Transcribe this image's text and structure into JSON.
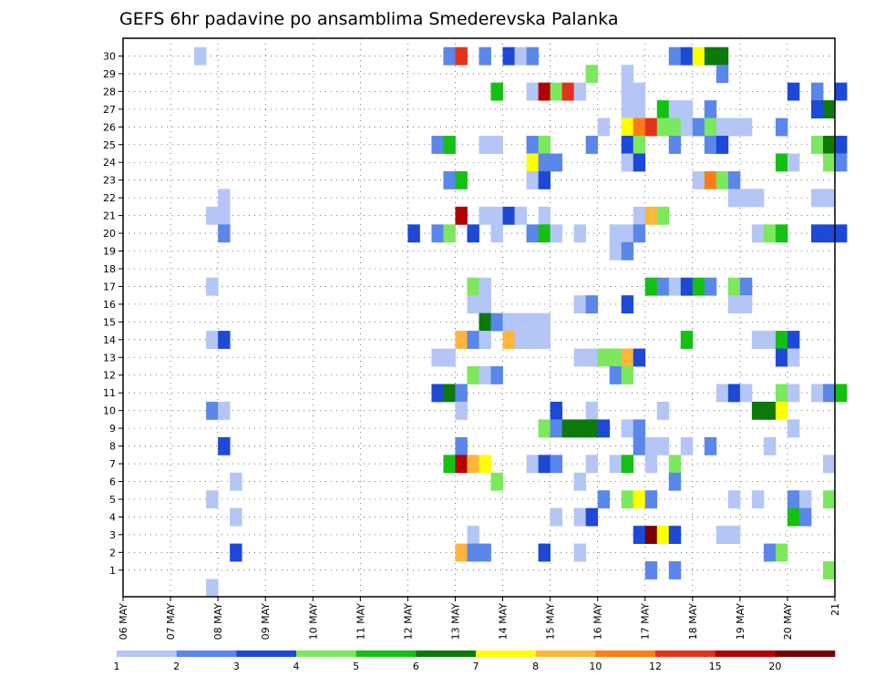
{
  "chart_data": {
    "type": "heatmap",
    "title": "GEFS 6hr padavine po ansamblima Smederevska Palanka",
    "xlabel": "",
    "ylabel": "",
    "x_tick_labels": [
      "06 MAY",
      "07 MAY",
      "08 MAY",
      "09 MAY",
      "10 MAY",
      "11 MAY",
      "12 MAY",
      "13 MAY",
      "14 MAY",
      "15 MAY",
      "16 MAY",
      "17 MAY",
      "18 MAY",
      "19 MAY",
      "20 MAY",
      "21"
    ],
    "y_tick_labels": [
      "1",
      "2",
      "3",
      "4",
      "5",
      "6",
      "7",
      "8",
      "9",
      "10",
      "11",
      "12",
      "13",
      "14",
      "15",
      "16",
      "17",
      "18",
      "19",
      "20",
      "21",
      "22",
      "23",
      "24",
      "25",
      "26",
      "27",
      "28",
      "29",
      "30"
    ],
    "grid": true,
    "n_steps": 60,
    "colorbar": {
      "labels": [
        "1",
        "2",
        "3",
        "4",
        "5",
        "6",
        "7",
        "8",
        "10",
        "12",
        "15",
        "20"
      ],
      "colors": [
        "#b3c6f5",
        "#5b86ea",
        "#1d49d6",
        "#7be85d",
        "#14c014",
        "#0b7a0b",
        "#ffff00",
        "#ffb43a",
        "#ff7d14",
        "#e4321a",
        "#b30000",
        "#780000"
      ]
    },
    "cells": [
      [
        6,
        30,
        0
      ],
      [
        27,
        30,
        1
      ],
      [
        28,
        30,
        9
      ],
      [
        30,
        30,
        1
      ],
      [
        32,
        30,
        2
      ],
      [
        33,
        30,
        0
      ],
      [
        34,
        30,
        1
      ],
      [
        46,
        30,
        1
      ],
      [
        47,
        30,
        2
      ],
      [
        48,
        30,
        6
      ],
      [
        49,
        30,
        5
      ],
      [
        50,
        30,
        5
      ],
      [
        39,
        29,
        3
      ],
      [
        42,
        29,
        0
      ],
      [
        50,
        29,
        1
      ],
      [
        31,
        28,
        4
      ],
      [
        34,
        28,
        0
      ],
      [
        35,
        28,
        10
      ],
      [
        36,
        28,
        3
      ],
      [
        37,
        28,
        9
      ],
      [
        38,
        28,
        0
      ],
      [
        42,
        28,
        0
      ],
      [
        43,
        28,
        0
      ],
      [
        56,
        28,
        2
      ],
      [
        58,
        28,
        1
      ],
      [
        60,
        28,
        2
      ],
      [
        42,
        27,
        0
      ],
      [
        43,
        27,
        0
      ],
      [
        45,
        27,
        4
      ],
      [
        46,
        27,
        0
      ],
      [
        47,
        27,
        0
      ],
      [
        49,
        27,
        1
      ],
      [
        58,
        27,
        2
      ],
      [
        59,
        27,
        5
      ],
      [
        40,
        26,
        0
      ],
      [
        42,
        26,
        6
      ],
      [
        43,
        26,
        8
      ],
      [
        44,
        26,
        9
      ],
      [
        45,
        26,
        3
      ],
      [
        46,
        26,
        3
      ],
      [
        47,
        26,
        0
      ],
      [
        48,
        26,
        1
      ],
      [
        49,
        26,
        3
      ],
      [
        50,
        26,
        0
      ],
      [
        51,
        26,
        0
      ],
      [
        52,
        26,
        0
      ],
      [
        55,
        26,
        1
      ],
      [
        26,
        25,
        1
      ],
      [
        27,
        25,
        4
      ],
      [
        30,
        25,
        0
      ],
      [
        31,
        25,
        0
      ],
      [
        34,
        25,
        1
      ],
      [
        35,
        25,
        3
      ],
      [
        39,
        25,
        1
      ],
      [
        42,
        25,
        2
      ],
      [
        43,
        25,
        3
      ],
      [
        46,
        25,
        1
      ],
      [
        49,
        25,
        1
      ],
      [
        50,
        25,
        2
      ],
      [
        58,
        25,
        3
      ],
      [
        59,
        25,
        5
      ],
      [
        60,
        25,
        2
      ],
      [
        34,
        24,
        6
      ],
      [
        35,
        24,
        1
      ],
      [
        36,
        24,
        1
      ],
      [
        42,
        24,
        0
      ],
      [
        43,
        24,
        2
      ],
      [
        55,
        24,
        4
      ],
      [
        56,
        24,
        0
      ],
      [
        59,
        24,
        3
      ],
      [
        60,
        24,
        1
      ],
      [
        27,
        23,
        1
      ],
      [
        28,
        23,
        4
      ],
      [
        34,
        23,
        0
      ],
      [
        35,
        23,
        2
      ],
      [
        48,
        23,
        0
      ],
      [
        49,
        23,
        8
      ],
      [
        50,
        23,
        3
      ],
      [
        51,
        23,
        1
      ],
      [
        8,
        22,
        0
      ],
      [
        51,
        22,
        0
      ],
      [
        52,
        22,
        0
      ],
      [
        53,
        22,
        0
      ],
      [
        58,
        22,
        0
      ],
      [
        59,
        22,
        0
      ],
      [
        7,
        21,
        0
      ],
      [
        8,
        21,
        0
      ],
      [
        28,
        21,
        10
      ],
      [
        30,
        21,
        0
      ],
      [
        31,
        21,
        0
      ],
      [
        32,
        21,
        2
      ],
      [
        33,
        21,
        0
      ],
      [
        35,
        21,
        0
      ],
      [
        43,
        21,
        0
      ],
      [
        44,
        21,
        7
      ],
      [
        45,
        21,
        3
      ],
      [
        8,
        20,
        1
      ],
      [
        24,
        20,
        2
      ],
      [
        26,
        20,
        1
      ],
      [
        27,
        20,
        3
      ],
      [
        29,
        20,
        2
      ],
      [
        31,
        20,
        0
      ],
      [
        34,
        20,
        1
      ],
      [
        35,
        20,
        4
      ],
      [
        36,
        20,
        0
      ],
      [
        38,
        20,
        0
      ],
      [
        41,
        20,
        0
      ],
      [
        42,
        20,
        0
      ],
      [
        43,
        20,
        1
      ],
      [
        53,
        20,
        0
      ],
      [
        54,
        20,
        3
      ],
      [
        55,
        20,
        4
      ],
      [
        58,
        20,
        2
      ],
      [
        59,
        20,
        2
      ],
      [
        60,
        20,
        2
      ],
      [
        41,
        19,
        0
      ],
      [
        42,
        19,
        1
      ],
      [
        7,
        17,
        0
      ],
      [
        29,
        17,
        3
      ],
      [
        30,
        17,
        0
      ],
      [
        44,
        17,
        4
      ],
      [
        45,
        17,
        1
      ],
      [
        46,
        17,
        0
      ],
      [
        47,
        17,
        2
      ],
      [
        48,
        17,
        4
      ],
      [
        49,
        17,
        1
      ],
      [
        51,
        17,
        3
      ],
      [
        52,
        17,
        1
      ],
      [
        29,
        16,
        0
      ],
      [
        30,
        16,
        0
      ],
      [
        38,
        16,
        0
      ],
      [
        39,
        16,
        1
      ],
      [
        42,
        16,
        2
      ],
      [
        51,
        16,
        0
      ],
      [
        52,
        16,
        0
      ],
      [
        30,
        15,
        5
      ],
      [
        31,
        15,
        1
      ],
      [
        32,
        15,
        0
      ],
      [
        33,
        15,
        0
      ],
      [
        34,
        15,
        0
      ],
      [
        35,
        15,
        0
      ],
      [
        7,
        14,
        0
      ],
      [
        8,
        14,
        2
      ],
      [
        28,
        14,
        7
      ],
      [
        29,
        14,
        1
      ],
      [
        30,
        14,
        0
      ],
      [
        32,
        14,
        7
      ],
      [
        33,
        14,
        0
      ],
      [
        34,
        14,
        0
      ],
      [
        35,
        14,
        0
      ],
      [
        47,
        14,
        4
      ],
      [
        53,
        14,
        0
      ],
      [
        54,
        14,
        0
      ],
      [
        55,
        14,
        4
      ],
      [
        56,
        14,
        2
      ],
      [
        26,
        13,
        0
      ],
      [
        27,
        13,
        0
      ],
      [
        38,
        13,
        0
      ],
      [
        39,
        13,
        0
      ],
      [
        40,
        13,
        3
      ],
      [
        41,
        13,
        3
      ],
      [
        42,
        13,
        7
      ],
      [
        43,
        13,
        2
      ],
      [
        55,
        13,
        2
      ],
      [
        56,
        13,
        0
      ],
      [
        29,
        12,
        3
      ],
      [
        30,
        12,
        0
      ],
      [
        31,
        12,
        1
      ],
      [
        41,
        12,
        1
      ],
      [
        42,
        12,
        3
      ],
      [
        26,
        11,
        2
      ],
      [
        27,
        11,
        5
      ],
      [
        28,
        11,
        1
      ],
      [
        50,
        11,
        0
      ],
      [
        51,
        11,
        2
      ],
      [
        52,
        11,
        0
      ],
      [
        55,
        11,
        3
      ],
      [
        56,
        11,
        0
      ],
      [
        58,
        11,
        0
      ],
      [
        59,
        11,
        1
      ],
      [
        60,
        11,
        4
      ],
      [
        7,
        10,
        1
      ],
      [
        8,
        10,
        0
      ],
      [
        28,
        10,
        0
      ],
      [
        36,
        10,
        2
      ],
      [
        39,
        10,
        0
      ],
      [
        45,
        10,
        0
      ],
      [
        53,
        10,
        5
      ],
      [
        54,
        10,
        5
      ],
      [
        55,
        10,
        6
      ],
      [
        35,
        9,
        3
      ],
      [
        36,
        9,
        1
      ],
      [
        37,
        9,
        5
      ],
      [
        38,
        9,
        5
      ],
      [
        39,
        9,
        5
      ],
      [
        40,
        9,
        2
      ],
      [
        42,
        9,
        0
      ],
      [
        43,
        9,
        1
      ],
      [
        56,
        9,
        0
      ],
      [
        8,
        8,
        2
      ],
      [
        28,
        8,
        1
      ],
      [
        43,
        8,
        1
      ],
      [
        44,
        8,
        0
      ],
      [
        45,
        8,
        0
      ],
      [
        47,
        8,
        0
      ],
      [
        49,
        8,
        1
      ],
      [
        54,
        8,
        0
      ],
      [
        27,
        7,
        4
      ],
      [
        28,
        7,
        10
      ],
      [
        29,
        7,
        7
      ],
      [
        30,
        7,
        6
      ],
      [
        34,
        7,
        0
      ],
      [
        35,
        7,
        2
      ],
      [
        36,
        7,
        1
      ],
      [
        39,
        7,
        0
      ],
      [
        41,
        7,
        0
      ],
      [
        42,
        7,
        4
      ],
      [
        44,
        7,
        0
      ],
      [
        46,
        7,
        3
      ],
      [
        59,
        7,
        0
      ],
      [
        9,
        6,
        0
      ],
      [
        31,
        6,
        3
      ],
      [
        38,
        6,
        0
      ],
      [
        46,
        6,
        1
      ],
      [
        7,
        5,
        0
      ],
      [
        40,
        5,
        1
      ],
      [
        42,
        5,
        3
      ],
      [
        43,
        5,
        6
      ],
      [
        44,
        5,
        1
      ],
      [
        51,
        5,
        0
      ],
      [
        53,
        5,
        0
      ],
      [
        56,
        5,
        1
      ],
      [
        57,
        5,
        0
      ],
      [
        59,
        5,
        3
      ],
      [
        9,
        4,
        0
      ],
      [
        36,
        4,
        0
      ],
      [
        38,
        4,
        0
      ],
      [
        39,
        4,
        2
      ],
      [
        56,
        4,
        4
      ],
      [
        57,
        4,
        1
      ],
      [
        29,
        3,
        0
      ],
      [
        43,
        3,
        2
      ],
      [
        44,
        3,
        11
      ],
      [
        45,
        3,
        6
      ],
      [
        46,
        3,
        2
      ],
      [
        50,
        3,
        0
      ],
      [
        51,
        3,
        0
      ],
      [
        9,
        2,
        2
      ],
      [
        28,
        2,
        7
      ],
      [
        29,
        2,
        1
      ],
      [
        30,
        2,
        1
      ],
      [
        35,
        2,
        2
      ],
      [
        38,
        2,
        0
      ],
      [
        54,
        2,
        1
      ],
      [
        55,
        2,
        3
      ],
      [
        44,
        1,
        1
      ],
      [
        46,
        1,
        1
      ],
      [
        59,
        1,
        3
      ],
      [
        7,
        0,
        0
      ]
    ]
  }
}
